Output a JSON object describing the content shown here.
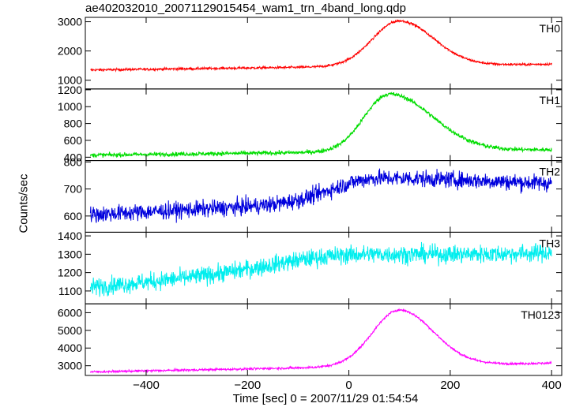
{
  "chart_data": {
    "type": "line",
    "title": "ae402032010_20071129015454_wam1_trn_4band_long.qdp",
    "xlabel": "Time [sec] 0 = 2007/11/29 01:54:54",
    "ylabel": "Counts/sec",
    "xlim": [
      -520,
      420
    ],
    "x_ticks": [
      -400,
      -200,
      0,
      200,
      400
    ],
    "x_tick_labels": [
      "−400",
      "−200",
      "0",
      "200",
      "400"
    ],
    "panels": [
      {
        "name": "TH0",
        "color": "#ff0000",
        "ylim": [
          700,
          3150
        ],
        "y_ticks": [
          1000,
          2000,
          3000
        ],
        "shape": {
          "base_start": 1350,
          "base_end": 1550,
          "peak": 3030,
          "peak_time": 100,
          "rise_width": 75,
          "decay_width": 95,
          "noise": 30
        }
      },
      {
        "name": "TH1",
        "color": "#00dd00",
        "ylim": [
          360,
          1210
        ],
        "y_ticks": [
          400,
          600,
          800,
          1000,
          1200
        ],
        "shape": {
          "base_start": 425,
          "base_end": 490,
          "peak": 1150,
          "peak_time": 80,
          "rise_width": 70,
          "decay_width": 120,
          "noise": 18
        }
      },
      {
        "name": "TH2",
        "color": "#0000dd",
        "ylim": [
          540,
          805
        ],
        "y_ticks": [
          600,
          700,
          800
        ],
        "shape": {
          "base_start": 605,
          "base_end": 690,
          "peak": 740,
          "peak_time": 60,
          "rise_width": 120,
          "decay_width": 500,
          "noise": 22
        }
      },
      {
        "name": "TH3",
        "color": "#00eeee",
        "ylim": [
          1030,
          1420
        ],
        "y_ticks": [
          1100,
          1200,
          1300,
          1400
        ],
        "shape": {
          "base_start": 1120,
          "base_end": 1350,
          "peak": 1300,
          "peak_time": 50,
          "rise_width": 200,
          "decay_width": 800,
          "noise": 35
        }
      },
      {
        "name": "TH0123",
        "color": "#ff00ff",
        "ylim": [
          2450,
          6500
        ],
        "y_ticks": [
          3000,
          4000,
          5000,
          6000
        ],
        "shape": {
          "base_start": 2650,
          "base_end": 3150,
          "peak": 6150,
          "peak_time": 100,
          "rise_width": 75,
          "decay_width": 95,
          "noise": 45
        }
      }
    ],
    "grid": false,
    "legend": "none"
  }
}
